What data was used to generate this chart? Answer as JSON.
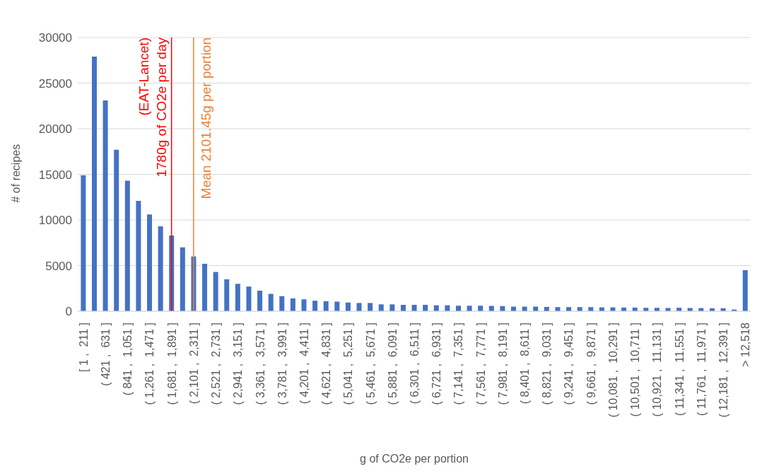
{
  "chart_data": {
    "type": "bar",
    "xlabel": "g of CO2e per portion",
    "ylabel": "# of recipes",
    "categories": [
      "[ 1 ,  211 ]",
      null,
      "( 421 ,  631 ]",
      null,
      "( 841 ,  1,051 ]",
      null,
      "( 1,261 ,  1,471 ]",
      null,
      "( 1,681 ,  1,891 ]",
      null,
      "( 2,101 ,  2,311 ]",
      null,
      "( 2,521 ,  2,731 ]",
      null,
      "( 2,941 ,  3,151 ]",
      null,
      "( 3,361 ,  3,571 ]",
      null,
      "( 3,781 ,  3,991 ]",
      null,
      "( 4,201 ,  4,411 ]",
      null,
      "( 4,621 ,  4,831 ]",
      null,
      "( 5,041 ,  5,251 ]",
      null,
      "( 5,461 ,  5,671 ]",
      null,
      "( 5,881 ,  6,091 ]",
      null,
      "( 6,301 ,  6,511 ]",
      null,
      "( 6,721 ,  6,931 ]",
      null,
      "( 7,141 ,  7,351 ]",
      null,
      "( 7,561 ,  7,771 ]",
      null,
      "( 7,981 ,  8,191 ]",
      null,
      "( 8,401 ,  8,611 ]",
      null,
      "( 8,821 ,  9,031 ]",
      null,
      "( 9,241 ,  9,451 ]",
      null,
      "( 9,661 ,  9,871 ]",
      null,
      "( 10,081 ,  10,291 ]",
      null,
      "( 10,501 ,  10,711 ]",
      null,
      "( 10,921 ,  11,131 ]",
      null,
      "( 11,341 ,  11,551 ]",
      null,
      "( 11,761 ,  11,971 ]",
      null,
      "( 12,181 ,  12,391 ]",
      null,
      "> 12,518"
    ],
    "values": [
      14900,
      27900,
      23100,
      17700,
      14300,
      12100,
      10600,
      9300,
      8300,
      7000,
      6000,
      5200,
      4300,
      3500,
      3000,
      2700,
      2250,
      1900,
      1650,
      1400,
      1300,
      1150,
      1100,
      1050,
      950,
      900,
      900,
      750,
      750,
      700,
      700,
      700,
      650,
      650,
      600,
      600,
      600,
      580,
      560,
      500,
      500,
      500,
      470,
      450,
      450,
      450,
      450,
      420,
      420,
      400,
      400,
      370,
      370,
      350,
      380,
      350,
      340,
      320,
      320,
      180,
      4500
    ],
    "color": "#4472c4",
    "ylim": [
      0,
      30000
    ],
    "yticks": [
      0,
      5000,
      10000,
      15000,
      20000,
      25000,
      30000
    ],
    "grid": "y",
    "legend": false,
    "ref_lines": [
      {
        "axis": "x",
        "value": "( 1,681 ,  1,891 ]",
        "label": "(EAT-Lancet)\n1780g of CO2e per day",
        "color": "#ff0000"
      },
      {
        "axis": "x",
        "value": "( 2,101 ,  2,311 ]",
        "label": "Mean 2101.45g per portion",
        "color": "#ed7d31"
      }
    ]
  }
}
